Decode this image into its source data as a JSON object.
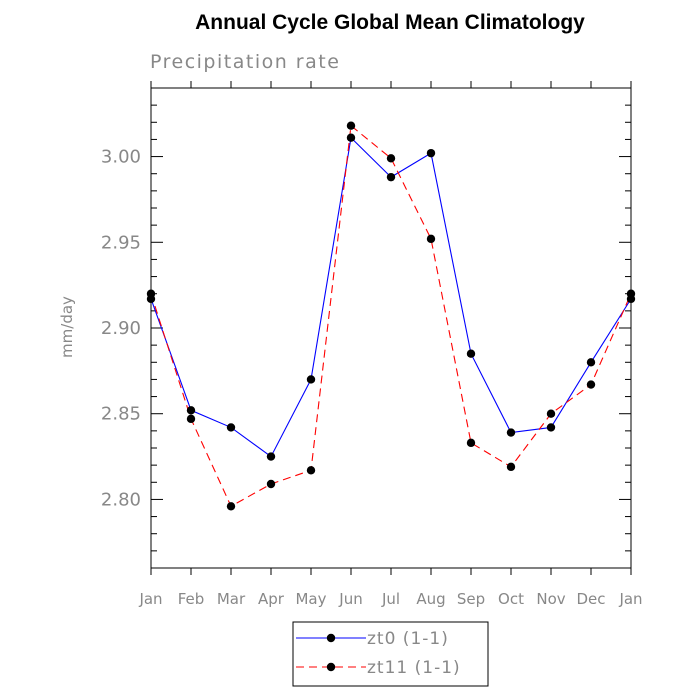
{
  "chart_data": {
    "type": "line",
    "title": "Annual Cycle Global Mean Climatology",
    "subtitle": "Precipitation rate",
    "xlabel": "",
    "ylabel": "mm/day",
    "categories": [
      "Jan",
      "Feb",
      "Mar",
      "Apr",
      "May",
      "Jun",
      "Jul",
      "Aug",
      "Sep",
      "Oct",
      "Nov",
      "Dec",
      "Jan"
    ],
    "ylim": [
      2.76,
      3.04
    ],
    "yticks": [
      2.8,
      2.85,
      2.9,
      2.95,
      3.0
    ],
    "ytick_labels": [
      "2.80",
      "2.85",
      "2.90",
      "2.95",
      "3.00"
    ],
    "series": [
      {
        "name": "zt0 (1-1)",
        "color": "#0000ff",
        "dash": "solid",
        "marker": "filled-circle",
        "values": [
          2.917,
          2.852,
          2.842,
          2.825,
          2.87,
          3.011,
          2.988,
          3.002,
          2.885,
          2.839,
          2.842,
          2.88,
          2.917
        ]
      },
      {
        "name": "zt11 (1-1)",
        "color": "#ff0000",
        "dash": "dashed",
        "marker": "filled-circle",
        "values": [
          2.92,
          2.847,
          2.796,
          2.809,
          2.817,
          3.018,
          2.999,
          2.952,
          2.833,
          2.819,
          2.85,
          2.867,
          2.92
        ]
      }
    ],
    "legend": {
      "position": "bottom-center",
      "entries": [
        "zt0 (1-1)",
        "zt11 (1-1)"
      ]
    }
  }
}
